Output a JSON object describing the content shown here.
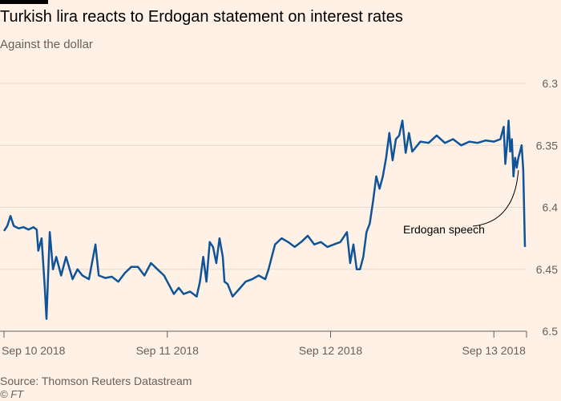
{
  "header": {
    "title": "Turkish lira reacts to Erdogan statement on interest rates",
    "subtitle": "Against the dollar"
  },
  "footer": {
    "source": "Source: Thomson Reuters Datastream",
    "credit": "© FT"
  },
  "colors": {
    "line": "#0f5499",
    "grid": "#e6d9ce",
    "axis": "#66605c",
    "background": "#fff1e5"
  },
  "chart_data": {
    "type": "line",
    "title": "Turkish lira reacts to Erdogan statement on interest rates",
    "subtitle": "Against the dollar",
    "y_inverted": true,
    "ylim": [
      6.3,
      6.5
    ],
    "y_ticks": [
      {
        "value": 6.3,
        "label": "6.3"
      },
      {
        "value": 6.35,
        "label": "6.35"
      },
      {
        "value": 6.4,
        "label": "6.4"
      },
      {
        "value": 6.45,
        "label": "6.45"
      },
      {
        "value": 6.5,
        "label": "6.5"
      }
    ],
    "x_ticks": [
      {
        "value": 0,
        "label": "Sep 10 2018"
      },
      {
        "value": 1,
        "label": "Sep 11 2018"
      },
      {
        "value": 2,
        "label": "Sep 12 2018"
      },
      {
        "value": 3,
        "label": "Sep 13 2018"
      }
    ],
    "xlim": [
      0,
      3.2
    ],
    "grid": true,
    "series": [
      {
        "values": [
          [
            0.0,
            6.419
          ],
          [
            0.02,
            6.415
          ],
          [
            0.04,
            6.407
          ],
          [
            0.06,
            6.415
          ],
          [
            0.09,
            6.417
          ],
          [
            0.12,
            6.416
          ],
          [
            0.15,
            6.418
          ],
          [
            0.18,
            6.416
          ],
          [
            0.2,
            6.418
          ],
          [
            0.21,
            6.435
          ],
          [
            0.23,
            6.425
          ],
          [
            0.25,
            6.465
          ],
          [
            0.26,
            6.49
          ],
          [
            0.28,
            6.42
          ],
          [
            0.3,
            6.45
          ],
          [
            0.32,
            6.44
          ],
          [
            0.35,
            6.455
          ],
          [
            0.38,
            6.44
          ],
          [
            0.42,
            6.458
          ],
          [
            0.45,
            6.45
          ],
          [
            0.48,
            6.455
          ],
          [
            0.52,
            6.458
          ],
          [
            0.56,
            6.43
          ],
          [
            0.58,
            6.455
          ],
          [
            0.62,
            6.457
          ],
          [
            0.66,
            6.456
          ],
          [
            0.7,
            6.46
          ],
          [
            0.74,
            6.453
          ],
          [
            0.78,
            6.448
          ],
          [
            0.82,
            6.448
          ],
          [
            0.86,
            6.455
          ],
          [
            0.9,
            6.445
          ],
          [
            0.94,
            6.45
          ],
          [
            0.98,
            6.455
          ],
          [
            1.0,
            6.46
          ],
          [
            1.04,
            6.47
          ],
          [
            1.07,
            6.465
          ],
          [
            1.1,
            6.47
          ],
          [
            1.14,
            6.468
          ],
          [
            1.18,
            6.472
          ],
          [
            1.2,
            6.46
          ],
          [
            1.22,
            6.44
          ],
          [
            1.24,
            6.46
          ],
          [
            1.26,
            6.428
          ],
          [
            1.28,
            6.432
          ],
          [
            1.3,
            6.445
          ],
          [
            1.32,
            6.425
          ],
          [
            1.34,
            6.44
          ],
          [
            1.35,
            6.46
          ],
          [
            1.37,
            6.462
          ],
          [
            1.4,
            6.472
          ],
          [
            1.44,
            6.466
          ],
          [
            1.48,
            6.46
          ],
          [
            1.52,
            6.458
          ],
          [
            1.56,
            6.455
          ],
          [
            1.6,
            6.458
          ],
          [
            1.62,
            6.45
          ],
          [
            1.64,
            6.44
          ],
          [
            1.66,
            6.43
          ],
          [
            1.7,
            6.425
          ],
          [
            1.74,
            6.428
          ],
          [
            1.78,
            6.432
          ],
          [
            1.82,
            6.428
          ],
          [
            1.86,
            6.423
          ],
          [
            1.9,
            6.43
          ],
          [
            1.94,
            6.428
          ],
          [
            1.98,
            6.432
          ],
          [
            2.02,
            6.43
          ],
          [
            2.06,
            6.428
          ],
          [
            2.1,
            6.42
          ],
          [
            2.12,
            6.445
          ],
          [
            2.14,
            6.43
          ],
          [
            2.16,
            6.45
          ],
          [
            2.18,
            6.45
          ],
          [
            2.2,
            6.44
          ],
          [
            2.22,
            6.42
          ],
          [
            2.24,
            6.413
          ],
          [
            2.26,
            6.395
          ],
          [
            2.28,
            6.375
          ],
          [
            2.3,
            6.385
          ],
          [
            2.32,
            6.375
          ],
          [
            2.34,
            6.36
          ],
          [
            2.36,
            6.34
          ],
          [
            2.38,
            6.362
          ],
          [
            2.4,
            6.345
          ],
          [
            2.42,
            6.342
          ],
          [
            2.44,
            6.33
          ],
          [
            2.46,
            6.356
          ],
          [
            2.48,
            6.34
          ],
          [
            2.5,
            6.355
          ],
          [
            2.55,
            6.347
          ],
          [
            2.6,
            6.348
          ],
          [
            2.65,
            6.342
          ],
          [
            2.7,
            6.348
          ],
          [
            2.75,
            6.345
          ],
          [
            2.8,
            6.35
          ],
          [
            2.85,
            6.347
          ],
          [
            2.9,
            6.348
          ],
          [
            2.95,
            6.346
          ],
          [
            3.0,
            6.347
          ],
          [
            3.04,
            6.345
          ],
          [
            3.06,
            6.335
          ],
          [
            3.07,
            6.365
          ],
          [
            3.08,
            6.35
          ],
          [
            3.09,
            6.33
          ],
          [
            3.1,
            6.355
          ],
          [
            3.11,
            6.345
          ],
          [
            3.12,
            6.375
          ],
          [
            3.13,
            6.36
          ],
          [
            3.14,
            6.368
          ],
          [
            3.15,
            6.36
          ],
          [
            3.16,
            6.355
          ],
          [
            3.17,
            6.35
          ],
          [
            3.18,
            6.37
          ],
          [
            3.19,
            6.432
          ]
        ]
      }
    ],
    "annotations": [
      {
        "text": "Erdogan speech",
        "x": 3.15,
        "y": 6.37
      }
    ]
  }
}
